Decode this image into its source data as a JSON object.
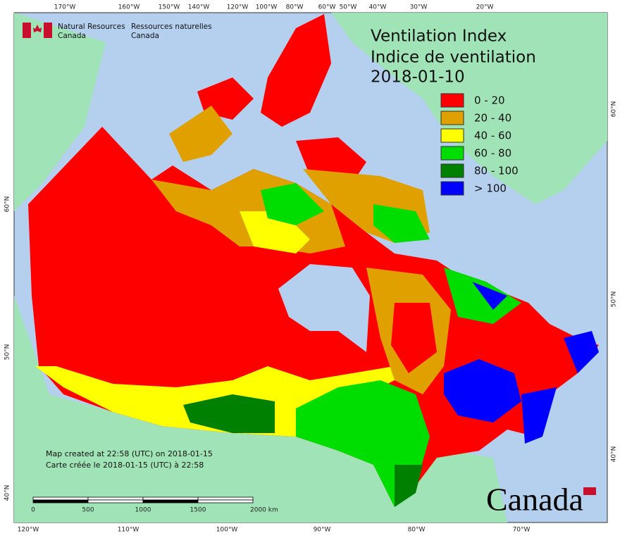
{
  "logo": {
    "en_line1": "Natural Resources",
    "en_line2": "Canada",
    "fr_line1": "Ressources naturelles",
    "fr_line2": "Canada"
  },
  "title": {
    "line1": "Ventilation Index",
    "line2": "Indice de ventilation",
    "date": "2018-01-10"
  },
  "legend": [
    {
      "label": "0 - 20",
      "color": "#ff0000"
    },
    {
      "label": "20 - 40",
      "color": "#e0a000"
    },
    {
      "label": "40 - 60",
      "color": "#ffff00"
    },
    {
      "label": "60 - 80",
      "color": "#00dd00"
    },
    {
      "label": "80 - 100",
      "color": "#008000"
    },
    {
      "label": "> 100",
      "color": "#0000ff"
    }
  ],
  "graticule": {
    "top": [
      "170°W",
      "160°W",
      "150°W",
      "140°W",
      "120°W",
      "100°W",
      "80°W",
      "60°W",
      "50°W",
      "40°W",
      "30°W",
      "20°W"
    ],
    "bottom": [
      "120°W",
      "110°W",
      "100°W",
      "90°W",
      "80°W",
      "70°W"
    ],
    "left": [
      "60°N",
      "50°N",
      "40°N"
    ],
    "right": [
      "60°N",
      "50°N",
      "40°N"
    ]
  },
  "scale_bar": {
    "labels": [
      "0",
      "500",
      "1000",
      "1500",
      "2000 km"
    ]
  },
  "footer": {
    "line1": "Map created at 22:58 (UTC) on 2018-01-15",
    "line2": "Carte créée le 2018-01-15 (UTC) à 22:58"
  },
  "wordmark": "Canada"
}
